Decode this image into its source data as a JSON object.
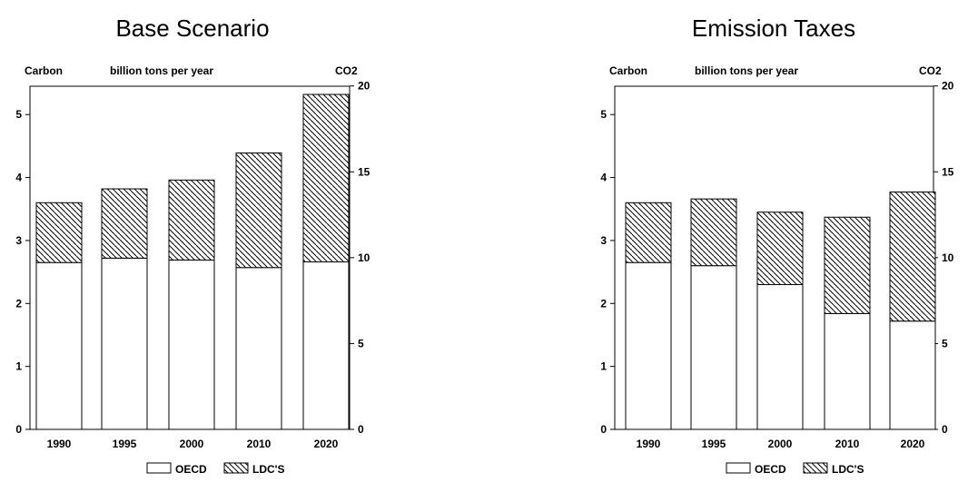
{
  "chart_data": [
    {
      "type": "bar",
      "stacked": true,
      "title": "Base Scenario",
      "left_axis_label": "Carbon",
      "unit_label": "billion tons per year",
      "right_axis_label": "CO2",
      "categories": [
        "1990",
        "1995",
        "2000",
        "2010",
        "2020"
      ],
      "series": [
        {
          "name": "OECD",
          "values": [
            2.65,
            2.72,
            2.69,
            2.57,
            2.66
          ]
        },
        {
          "name": "LDC'S",
          "values": [
            0.95,
            1.1,
            1.27,
            1.82,
            2.66
          ]
        }
      ],
      "ylim": [
        0,
        5.45
      ],
      "left_ticks": [
        "0",
        "1",
        "2",
        "3",
        "4",
        "5"
      ],
      "right_ticks": [
        "0",
        "5",
        "10",
        "15",
        "20"
      ],
      "right_tick_values": [
        0,
        5,
        10,
        15,
        20
      ],
      "co2_per_carbon": 3.667,
      "colors": {
        "OECD": "#ffffff",
        "LDC'S": "hatched"
      }
    },
    {
      "type": "bar",
      "stacked": true,
      "title": "Emission Taxes",
      "left_axis_label": "Carbon",
      "unit_label": "billion tons per year",
      "right_axis_label": "CO2",
      "categories": [
        "1990",
        "1995",
        "2000",
        "2010",
        "2020"
      ],
      "series": [
        {
          "name": "OECD",
          "values": [
            2.65,
            2.6,
            2.3,
            1.84,
            1.72
          ]
        },
        {
          "name": "LDC'S",
          "values": [
            0.95,
            1.06,
            1.15,
            1.53,
            2.05
          ]
        }
      ],
      "ylim": [
        0,
        5.45
      ],
      "left_ticks": [
        "0",
        "1",
        "2",
        "3",
        "4",
        "5"
      ],
      "right_ticks": [
        "0",
        "5",
        "10",
        "15",
        "20"
      ],
      "right_tick_values": [
        0,
        5,
        10,
        15,
        20
      ],
      "co2_per_carbon": 3.667,
      "colors": {
        "OECD": "#ffffff",
        "LDC'S": "hatched"
      }
    }
  ]
}
